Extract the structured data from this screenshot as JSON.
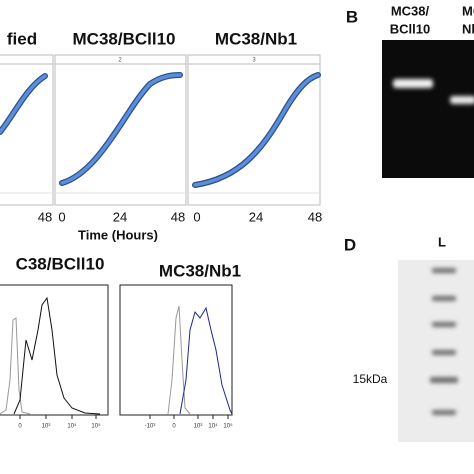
{
  "panel_a": {
    "titles": [
      "fied",
      "MC38/BCll10",
      "MC38/Nb1"
    ],
    "panel_numbers": [
      "2",
      "3"
    ],
    "x_ticks": [
      [
        "48"
      ],
      [
        "0",
        "24",
        "48"
      ],
      [
        "0",
        "24",
        "48"
      ]
    ],
    "x_label": "Time (Hours)"
  },
  "panel_b": {
    "label": "B",
    "lanes": [
      [
        "MC38/",
        "BCll10"
      ],
      [
        "MC",
        "Nb"
      ]
    ]
  },
  "panel_c": {
    "titles": [
      "C38/BCll10",
      "MC38/Nb1"
    ],
    "x_ticks": [
      [
        "0",
        "10³",
        "10⁴",
        "10⁵"
      ],
      [
        "-10³",
        "0",
        "10³",
        "10⁴",
        "10⁵"
      ]
    ]
  },
  "panel_d": {
    "label": "D",
    "lane": "L",
    "marker": "15kDa"
  }
}
